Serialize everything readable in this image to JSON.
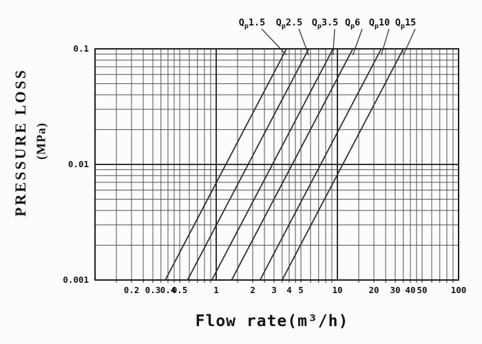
{
  "chart_data": {
    "type": "line",
    "title": "",
    "xlabel": "Flow rate(m³/h)",
    "ylabel": "PRESSURE LOSS",
    "ylabel_unit": "(MPa)",
    "x_axis": {
      "scale": "log",
      "min": 0.1,
      "max": 100,
      "tick_values": [
        0.2,
        0.3,
        0.4,
        0.5,
        1,
        2,
        3,
        4,
        5,
        10,
        20,
        30,
        40,
        50,
        100
      ],
      "tick_labels": [
        "0.2",
        "0.3",
        "0.4",
        "0.5",
        "1",
        "2",
        "3",
        "4",
        "5",
        "10",
        "20",
        "30",
        "40",
        "50",
        "100"
      ],
      "minor_per_decade": [
        1.5,
        2,
        2.5,
        3,
        3.5,
        4,
        4.5,
        5,
        6,
        7,
        8,
        9
      ]
    },
    "y_axis": {
      "scale": "log",
      "min": 0.001,
      "max": 0.1,
      "tick_values": [
        0.1,
        0.01,
        0.001
      ],
      "tick_labels": [
        "0.1",
        "0.01",
        "0.001"
      ],
      "minor_per_decade": [
        2,
        3,
        4,
        5,
        6,
        7,
        8,
        9
      ]
    },
    "grid": true,
    "legend_position": "top-callout-labels",
    "series": [
      {
        "name": "Qp1.5",
        "prefix": "Q",
        "sub": "p",
        "value": "1.5",
        "points": [
          [
            0.38,
            0.001
          ],
          [
            3.8,
            0.1
          ]
        ]
      },
      {
        "name": "Qp2.5",
        "prefix": "Q",
        "sub": "p",
        "value": "2.5",
        "points": [
          [
            0.58,
            0.001
          ],
          [
            5.8,
            0.1
          ]
        ]
      },
      {
        "name": "Qp3.5",
        "prefix": "Q",
        "sub": "p",
        "value": "3.5",
        "points": [
          [
            0.92,
            0.001
          ],
          [
            9.2,
            0.1
          ]
        ]
      },
      {
        "name": "Qp6",
        "prefix": "Q",
        "sub": "p",
        "value": "6",
        "points": [
          [
            1.34,
            0.001
          ],
          [
            13.4,
            0.1
          ]
        ]
      },
      {
        "name": "Qp10",
        "prefix": "Q",
        "sub": "p",
        "value": "10",
        "points": [
          [
            2.3,
            0.001
          ],
          [
            23,
            0.1
          ]
        ]
      },
      {
        "name": "Qp15",
        "prefix": "Q",
        "sub": "p",
        "value": "15",
        "points": [
          [
            3.5,
            0.001
          ],
          [
            35,
            0.1
          ]
        ]
      }
    ]
  },
  "colors": {
    "background": "#fcfcfb",
    "grid_minor": "#4f4f4f",
    "grid_major": "#1a1a1a",
    "curve": "#2e2e2e",
    "leader": "#333333",
    "text": "#111111"
  }
}
